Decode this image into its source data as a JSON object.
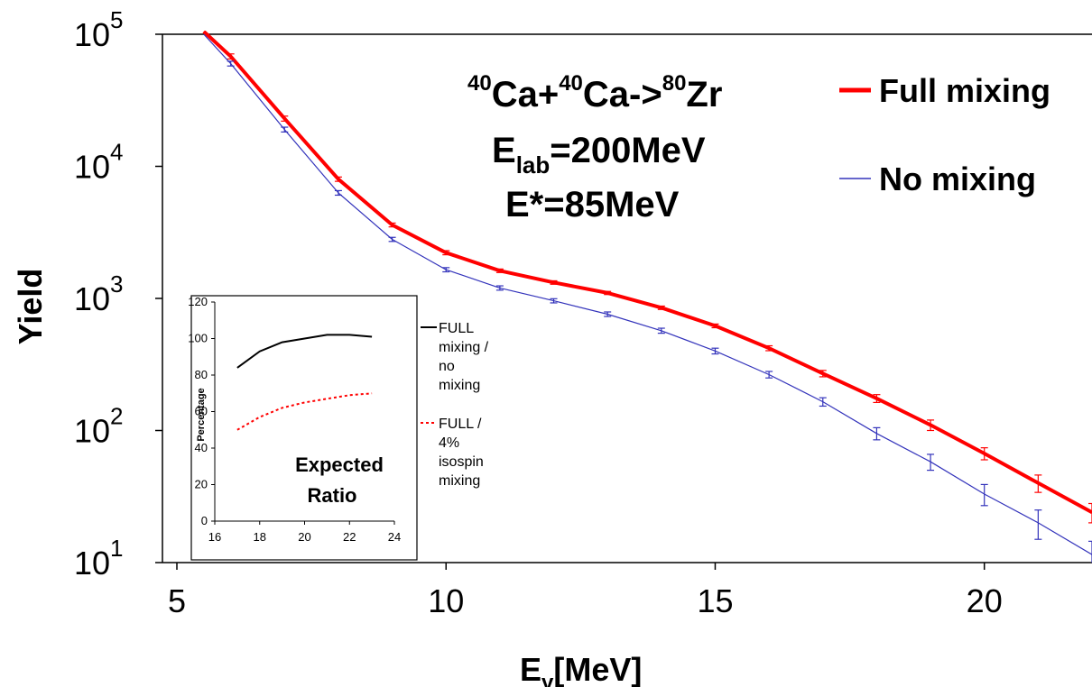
{
  "chart_data": [
    {
      "type": "line",
      "title": "",
      "annotations": {
        "reaction": {
          "a1": "40",
          "p1": "Ca+",
          "a2": "40",
          "p2": "Ca->",
          "a3": "80",
          "p3": "Zr"
        },
        "elab": {
          "main": "E",
          "sub": "lab",
          "rest": "=200MeV"
        },
        "estar": "E*=85MeV"
      },
      "xlabel": {
        "main": "E",
        "sub": "γ",
        "rest": "[MeV]"
      },
      "ylabel": "Yield",
      "xlim": [
        4.5,
        22
      ],
      "ylim": [
        10,
        100000
      ],
      "yscale": "log",
      "xticks": [
        5,
        10,
        15,
        20
      ],
      "yticks": [
        {
          "value": 10,
          "base": "10",
          "exp": "1"
        },
        {
          "value": 100,
          "base": "10",
          "exp": "2"
        },
        {
          "value": 1000,
          "base": "10",
          "exp": "3"
        },
        {
          "value": 10000,
          "base": "10",
          "exp": "4"
        },
        {
          "value": 100000,
          "base": "10",
          "exp": "5"
        }
      ],
      "legend_position": "top-right",
      "series": [
        {
          "name": "Full mixing",
          "color": "#ff0000",
          "x": [
            5.5,
            6,
            7,
            8,
            9,
            10,
            11,
            12,
            13,
            14,
            15,
            16,
            17,
            18,
            19,
            20,
            21,
            22
          ],
          "y": [
            105000,
            68000,
            23000,
            8000,
            3600,
            2220,
            1620,
            1320,
            1100,
            850,
            620,
            420,
            270,
            175,
            110,
            67,
            40,
            24
          ],
          "err": [
            0,
            3000,
            1000,
            300,
            120,
            80,
            50,
            40,
            30,
            25,
            20,
            18,
            15,
            12,
            10,
            7,
            6,
            4
          ]
        },
        {
          "name": "No mixing",
          "color": "#3333bb",
          "x": [
            5.5,
            6,
            7,
            8,
            9,
            10,
            11,
            12,
            13,
            14,
            15,
            16,
            17,
            18,
            19,
            20,
            21,
            22
          ],
          "y": [
            100000,
            60000,
            19000,
            6300,
            2800,
            1650,
            1200,
            960,
            760,
            570,
            400,
            265,
            165,
            95,
            58,
            33,
            20,
            11.5
          ],
          "err": [
            0,
            2500,
            800,
            250,
            100,
            60,
            45,
            35,
            30,
            25,
            20,
            15,
            12,
            10,
            8,
            6,
            5,
            3
          ]
        }
      ]
    },
    {
      "type": "line",
      "title": "",
      "note": [
        "Expected",
        "Ratio"
      ],
      "ylabel": "Percentage",
      "xlim": [
        16,
        24
      ],
      "ylim": [
        0,
        120
      ],
      "xticks": [
        16,
        18,
        20,
        22,
        24
      ],
      "yticks": [
        0,
        20,
        40,
        60,
        80,
        100,
        120
      ],
      "legend_position": "right",
      "series": [
        {
          "name_lines": [
            "FULL",
            "mixing /",
            "no",
            "mixing"
          ],
          "color": "#000000",
          "dash": "solid",
          "x": [
            17,
            18,
            19,
            20,
            21,
            22,
            23
          ],
          "y": [
            84,
            93,
            98,
            100,
            102,
            102,
            101
          ]
        },
        {
          "name_lines": [
            "FULL /",
            "4%",
            "isospin",
            "mixing"
          ],
          "color": "#ff0000",
          "dash": "dashed",
          "x": [
            17,
            18,
            19,
            20,
            21,
            22,
            23
          ],
          "y": [
            50,
            57,
            62,
            65,
            67,
            69,
            70
          ]
        }
      ]
    }
  ]
}
